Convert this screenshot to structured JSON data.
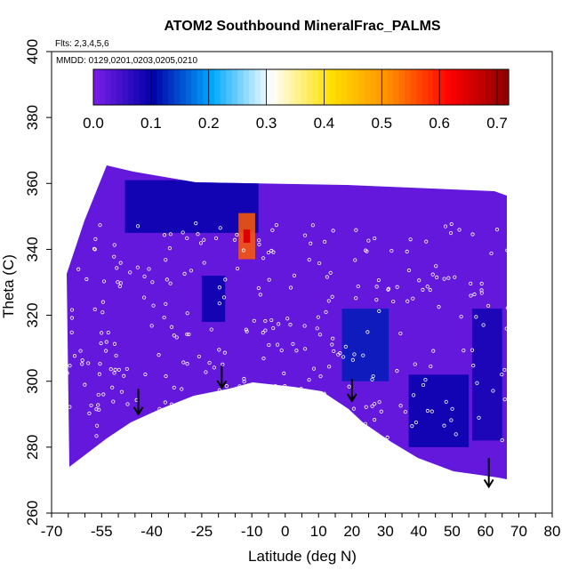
{
  "chart_data": {
    "type": "heatmap",
    "title": "ATOM2 Southbound MineralFrac_PALMS",
    "flights_note": "Flts: 2,3,4,5,6",
    "dates_note": "MMDD: 0129,0201,0203,0205,0210",
    "xlabel": "Latitude (deg N)",
    "ylabel": "Theta (C)",
    "xlim": [
      -70,
      80
    ],
    "ylim": [
      260,
      400
    ],
    "x_tick_labels": [
      "-70",
      "-55",
      "-40",
      "-25",
      "-10",
      "0",
      "10",
      "20",
      "30",
      "40",
      "50",
      "60",
      "70",
      "80"
    ],
    "y_tick_labels": [
      "260",
      "280",
      "300",
      "320",
      "340",
      "360",
      "380",
      "400"
    ],
    "colorbar": {
      "range": [
        0,
        0.72
      ],
      "tick_labels": [
        "0.0",
        "0.1",
        "0.2",
        "0.3",
        "0.4",
        "0.5",
        "0.6",
        "0.7"
      ],
      "colors": [
        "#7b1ee8",
        "#0000a8",
        "#00a8ff",
        "#ffffff",
        "#ffe000",
        "#ff8c00",
        "#ff0000",
        "#8b0000"
      ]
    },
    "background_value": 0.02,
    "features": [
      {
        "lat_range": [
          -48,
          -8
        ],
        "theta_range": [
          345,
          361
        ],
        "value": 0.1
      },
      {
        "lat_range": [
          -14,
          -9
        ],
        "theta_range": [
          337,
          351
        ],
        "value": 0.55
      },
      {
        "lat_range": [
          -25,
          -18
        ],
        "theta_range": [
          318,
          332
        ],
        "value": 0.1
      },
      {
        "lat_range": [
          17,
          31
        ],
        "theta_range": [
          300,
          322
        ],
        "value": 0.12
      },
      {
        "lat_range": [
          37,
          55
        ],
        "theta_range": [
          280,
          302
        ],
        "value": 0.1
      },
      {
        "lat_range": [
          56,
          65
        ],
        "theta_range": [
          282,
          322
        ],
        "value": 0.09
      }
    ],
    "arrows": [
      {
        "lat": -44,
        "theta_start": 295,
        "theta_end": 290
      },
      {
        "lat": -19,
        "theta_start": 302,
        "theta_end": 298
      },
      {
        "lat": 20,
        "theta_start": 298,
        "theta_end": 294
      },
      {
        "lat": 61,
        "theta_start": 274,
        "theta_end": 268
      }
    ]
  }
}
